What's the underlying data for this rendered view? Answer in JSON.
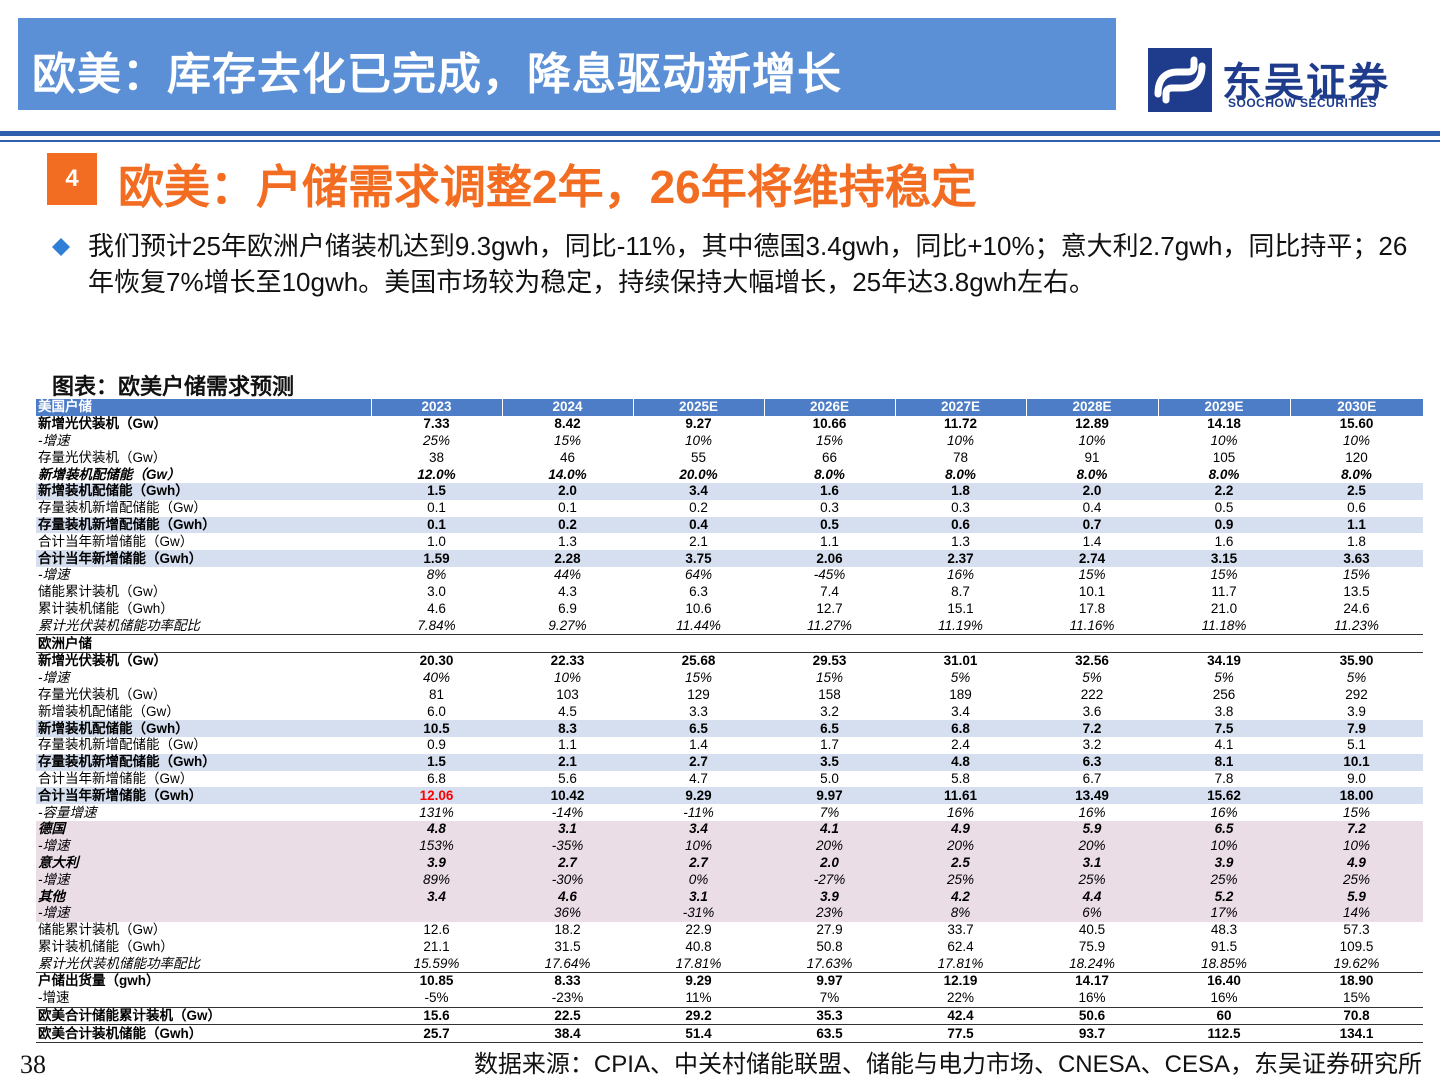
{
  "header": {
    "title": "欧美：库存去化已完成，降息驱动新增长",
    "logo_cn": "东吴证券",
    "logo_en": "SOOCHOW SECURITIES"
  },
  "section": {
    "number": "4",
    "title": "欧美：户储需求调整2年，26年将维持稳定"
  },
  "bullet_text": "我们预计25年欧洲户储装机达到9.3gwh，同比-11%，其中德国3.4gwh，同比+10%；意大利2.7gwh，同比持平；26年恢复7%增长至10gwh。美国市场较为稳定，持续保持大幅增长，25年达3.8gwh左右。",
  "figure_title": "图表：欧美户储需求预测",
  "table": {
    "header": [
      "美国户储",
      "2023",
      "2024",
      "2025E",
      "2026E",
      "2027E",
      "2028E",
      "2029E",
      "2030E"
    ],
    "rows": [
      [
        "新增光伏装机（Gw）",
        "7.33",
        "8.42",
        "9.27",
        "10.66",
        "11.72",
        "12.89",
        "14.18",
        "15.60"
      ],
      [
        "-增速",
        "25%",
        "15%",
        "10%",
        "15%",
        "10%",
        "10%",
        "10%",
        "10%"
      ],
      [
        "存量光伏装机（Gw）",
        "38",
        "46",
        "55",
        "66",
        "78",
        "91",
        "105",
        "120"
      ],
      [
        "新增装机配储能（Gw）",
        "12.0%",
        "14.0%",
        "20.0%",
        "8.0%",
        "8.0%",
        "8.0%",
        "8.0%",
        "8.0%"
      ],
      [
        "新增装机配储能（Gwh）",
        "1.5",
        "2.0",
        "3.4",
        "1.6",
        "1.8",
        "2.0",
        "2.2",
        "2.5"
      ],
      [
        "存量装机新增配储能（Gw）",
        "0.1",
        "0.1",
        "0.2",
        "0.3",
        "0.3",
        "0.4",
        "0.5",
        "0.6"
      ],
      [
        "存量装机新增配储能（Gwh）",
        "0.1",
        "0.2",
        "0.4",
        "0.5",
        "0.6",
        "0.7",
        "0.9",
        "1.1"
      ],
      [
        "合计当年新增储能（Gw）",
        "1.0",
        "1.3",
        "2.1",
        "1.1",
        "1.3",
        "1.4",
        "1.6",
        "1.8"
      ],
      [
        "合计当年新增储能（Gwh）",
        "1.59",
        "2.28",
        "3.75",
        "2.06",
        "2.37",
        "2.74",
        "3.15",
        "3.63"
      ],
      [
        "-增速",
        "8%",
        "44%",
        "64%",
        "-45%",
        "16%",
        "15%",
        "15%",
        "15%"
      ],
      [
        "储能累计装机（Gw）",
        "3.0",
        "4.3",
        "6.3",
        "7.4",
        "8.7",
        "10.1",
        "11.7",
        "13.5"
      ],
      [
        "累计装机储能（Gwh）",
        "4.6",
        "6.9",
        "10.6",
        "12.7",
        "15.1",
        "17.8",
        "21.0",
        "24.6"
      ],
      [
        "累计光伏装机储能功率配比",
        "7.84%",
        "9.27%",
        "11.44%",
        "11.27%",
        "11.19%",
        "11.16%",
        "11.18%",
        "11.23%"
      ],
      [
        "欧洲户储",
        "",
        "",
        "",
        "",
        "",
        "",
        "",
        ""
      ],
      [
        "新增光伏装机（Gw）",
        "20.30",
        "22.33",
        "25.68",
        "29.53",
        "31.01",
        "32.56",
        "34.19",
        "35.90"
      ],
      [
        "-增速",
        "40%",
        "10%",
        "15%",
        "15%",
        "5%",
        "5%",
        "5%",
        "5%"
      ],
      [
        "存量光伏装机（Gw）",
        "81",
        "103",
        "129",
        "158",
        "189",
        "222",
        "256",
        "292"
      ],
      [
        "新增装机配储能（Gw）",
        "6.0",
        "4.5",
        "3.3",
        "3.2",
        "3.4",
        "3.6",
        "3.8",
        "3.9"
      ],
      [
        "新增装机配储能（Gwh）",
        "10.5",
        "8.3",
        "6.5",
        "6.5",
        "6.8",
        "7.2",
        "7.5",
        "7.9"
      ],
      [
        "存量装机新增配储能（Gw）",
        "0.9",
        "1.1",
        "1.4",
        "1.7",
        "2.4",
        "3.2",
        "4.1",
        "5.1"
      ],
      [
        "存量装机新增配储能（Gwh）",
        "1.5",
        "2.1",
        "2.7",
        "3.5",
        "4.8",
        "6.3",
        "8.1",
        "10.1"
      ],
      [
        "合计当年新增储能（Gw）",
        "6.8",
        "5.6",
        "4.7",
        "5.0",
        "5.8",
        "6.7",
        "7.8",
        "9.0"
      ],
      [
        "合计当年新增储能（Gwh）",
        "12.06",
        "10.42",
        "9.29",
        "9.97",
        "11.61",
        "13.49",
        "15.62",
        "18.00"
      ],
      [
        "-容量增速",
        "131%",
        "-14%",
        "-11%",
        "7%",
        "16%",
        "16%",
        "16%",
        "15%"
      ],
      [
        "德国",
        "4.8",
        "3.1",
        "3.4",
        "4.1",
        "4.9",
        "5.9",
        "6.5",
        "7.2"
      ],
      [
        "-增速",
        "153%",
        "-35%",
        "10%",
        "20%",
        "20%",
        "20%",
        "10%",
        "10%"
      ],
      [
        "意大利",
        "3.9",
        "2.7",
        "2.7",
        "2.0",
        "2.5",
        "3.1",
        "3.9",
        "4.9"
      ],
      [
        "-增速",
        "89%",
        "-30%",
        "0%",
        "-27%",
        "25%",
        "25%",
        "25%",
        "25%"
      ],
      [
        "其他",
        "3.4",
        "4.6",
        "3.1",
        "3.9",
        "4.2",
        "4.4",
        "5.2",
        "5.9"
      ],
      [
        "-增速",
        "",
        "36%",
        "-31%",
        "23%",
        "8%",
        "6%",
        "17%",
        "14%"
      ],
      [
        "储能累计装机（Gw）",
        "12.6",
        "18.2",
        "22.9",
        "27.9",
        "33.7",
        "40.5",
        "48.3",
        "57.3"
      ],
      [
        "累计装机储能（Gwh）",
        "21.1",
        "31.5",
        "40.8",
        "50.8",
        "62.4",
        "75.9",
        "91.5",
        "109.5"
      ],
      [
        "累计光伏装机储能功率配比",
        "15.59%",
        "17.64%",
        "17.81%",
        "17.63%",
        "17.81%",
        "18.24%",
        "18.85%",
        "19.62%"
      ],
      [
        "户储出货量（gwh）",
        "10.85",
        "8.33",
        "9.29",
        "9.97",
        "12.19",
        "14.17",
        "16.40",
        "18.90"
      ],
      [
        "-增速",
        "-5%",
        "-23%",
        "11%",
        "7%",
        "22%",
        "16%",
        "16%",
        "15%"
      ],
      [
        "欧美合计储能累计装机（Gw）",
        "15.6",
        "22.5",
        "29.2",
        "35.3",
        "42.4",
        "50.6",
        "60",
        "70.8"
      ],
      [
        "欧美合计装机储能（Gwh）",
        "25.7",
        "38.4",
        "51.4",
        "63.5",
        "77.5",
        "93.7",
        "112.5",
        "134.1"
      ]
    ]
  },
  "footer": {
    "page": "38",
    "source": "数据来源：CPIA、中关村储能联盟、储能与电力市场、CNESA、CESA，东吴证券研究所"
  },
  "colors": {
    "banner": "#5B8FD6",
    "accent_orange": "#F26D21",
    "table_header": "#4E7DC7",
    "row_blue": "#D6DFEF",
    "row_pink": "#EADDE6",
    "highlight_red": "#FF0000"
  }
}
